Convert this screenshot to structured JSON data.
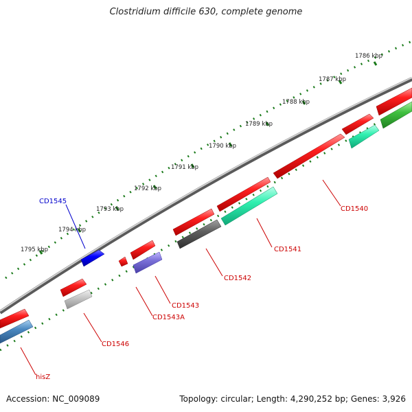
{
  "title": "Clostridium difficile 630, complete genome",
  "footer": {
    "accession": "Accession: NC_009089",
    "topology": "Topology: circular; Length: 4,290,252 bp; Genes: 3,926"
  },
  "colors": {
    "backbone": "#8a8a8a",
    "tick_dots": "#1a7a1a",
    "label_red": "#cc0000",
    "label_blue": "#0000cc"
  },
  "ticks": [
    "1786 kbp",
    "1787 kbp",
    "1788 kbp",
    "1789 kbp",
    "1790 kbp",
    "1791 kbp",
    "1792 kbp",
    "1793 kbp",
    "1794 kbp",
    "1795 kbp"
  ],
  "gene_labels": [
    {
      "id": "cd1540",
      "text": "CD1540",
      "color": "red"
    },
    {
      "id": "cd1541",
      "text": "CD1541",
      "color": "red"
    },
    {
      "id": "cd1542",
      "text": "CD1542",
      "color": "red"
    },
    {
      "id": "cd1543",
      "text": "CD1543",
      "color": "red"
    },
    {
      "id": "cd1543a",
      "text": "CD1543A",
      "color": "red"
    },
    {
      "id": "cd1545",
      "text": "CD1545",
      "color": "blue"
    },
    {
      "id": "cd1546",
      "text": "CD1546",
      "color": "red"
    },
    {
      "id": "hisz",
      "text": "hisZ",
      "color": "red"
    }
  ]
}
